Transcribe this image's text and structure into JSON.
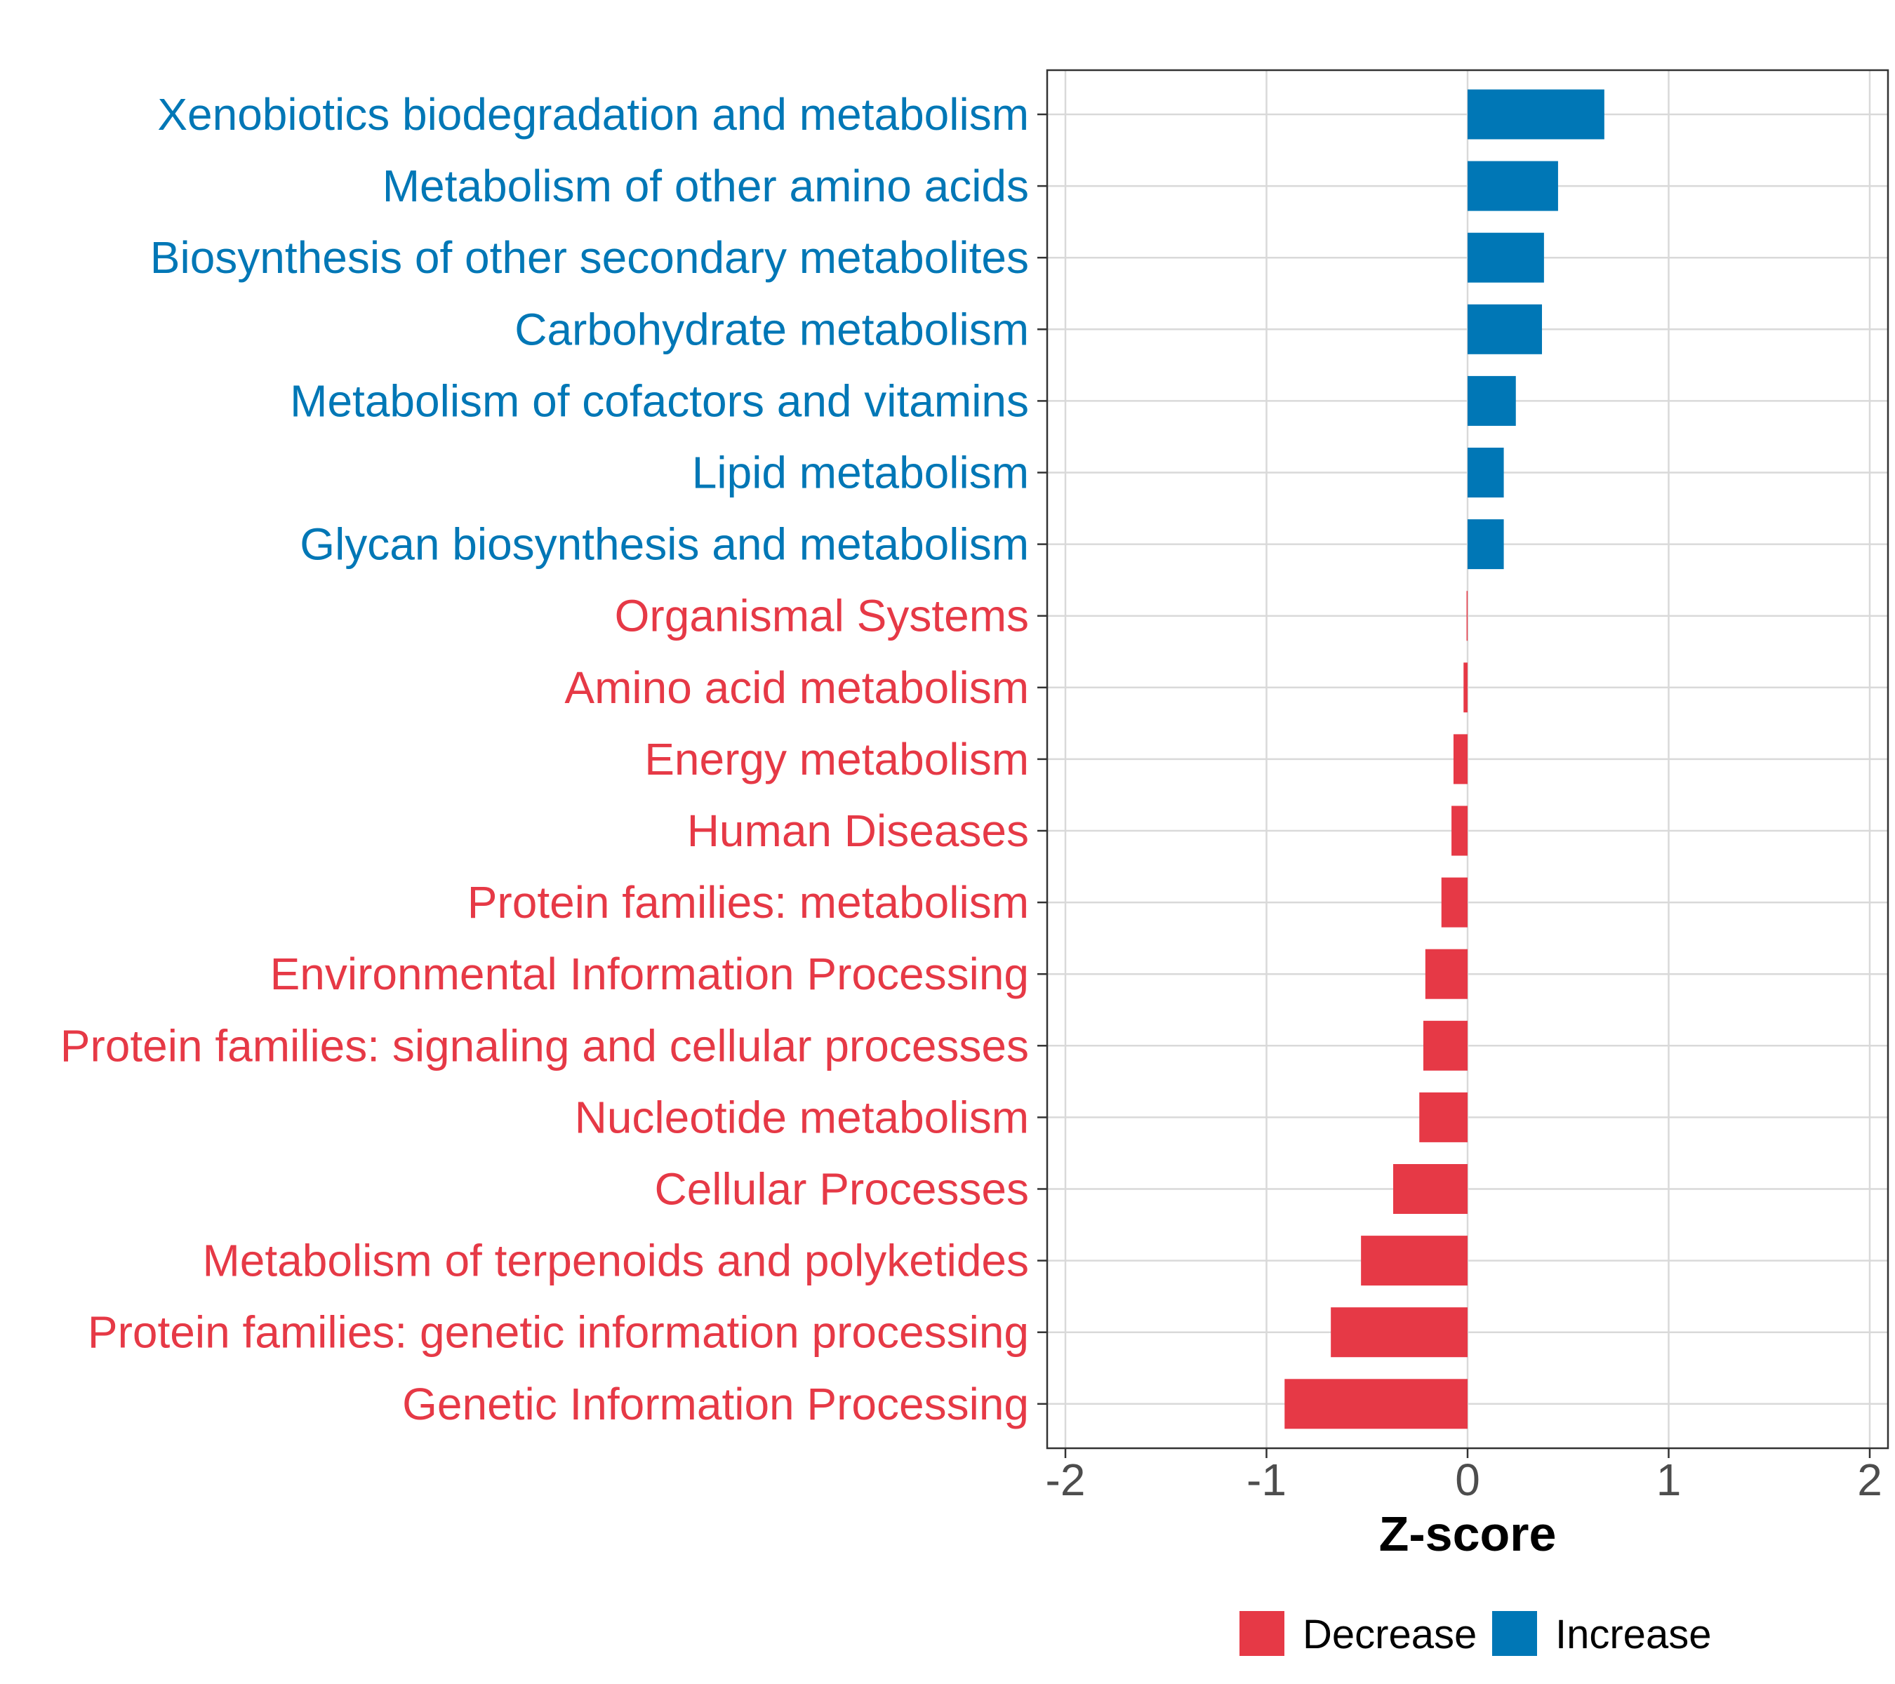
{
  "chart_data": {
    "type": "bar",
    "orientation": "horizontal",
    "title": "",
    "xlabel": "Z-score",
    "ylabel": "",
    "xlim": [
      -2.1,
      2.1
    ],
    "xticks": [
      -2,
      -1,
      0,
      1,
      2
    ],
    "xtick_labels": [
      "-2",
      "-1",
      "0",
      "1",
      "2"
    ],
    "grid": true,
    "legend_position": "bottom",
    "categories": [
      "Xenobiotics biodegradation and metabolism",
      "Metabolism of other amino acids",
      "Biosynthesis of other secondary metabolites",
      "Carbohydrate metabolism",
      "Metabolism of cofactors and vitamins",
      "Lipid metabolism",
      "Glycan biosynthesis and metabolism",
      "Organismal Systems",
      "Amino acid metabolism",
      "Energy metabolism",
      "Human Diseases",
      "Protein families: metabolism",
      "Environmental Information Processing",
      "Protein families: signaling and cellular processes",
      "Nucleotide metabolism",
      "Cellular Processes",
      "Metabolism of terpenoids and polyketides",
      "Protein families: genetic information processing",
      "Genetic Information Processing"
    ],
    "values": [
      0.68,
      0.45,
      0.38,
      0.37,
      0.24,
      0.18,
      0.18,
      -0.005,
      -0.02,
      -0.07,
      -0.08,
      -0.13,
      -0.21,
      -0.22,
      -0.24,
      -0.37,
      -0.53,
      -0.68,
      -0.91
    ],
    "groups": [
      "Increase",
      "Increase",
      "Increase",
      "Increase",
      "Increase",
      "Increase",
      "Increase",
      "Decrease",
      "Decrease",
      "Decrease",
      "Decrease",
      "Decrease",
      "Decrease",
      "Decrease",
      "Decrease",
      "Decrease",
      "Decrease",
      "Decrease",
      "Decrease"
    ],
    "legend": [
      {
        "label": "Decrease",
        "color": "#e63946"
      },
      {
        "label": "Increase",
        "color": "#0077b6"
      }
    ]
  }
}
